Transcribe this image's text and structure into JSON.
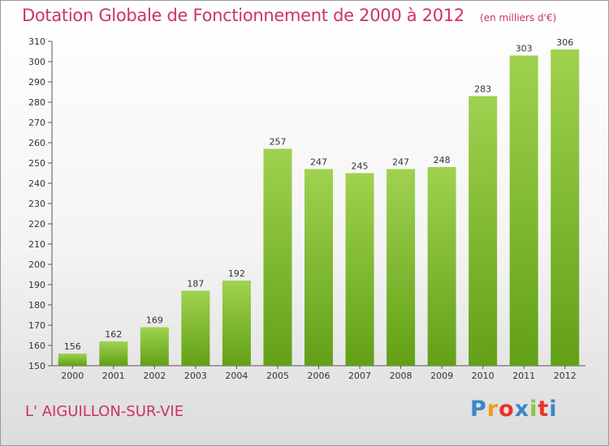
{
  "chart_data": {
    "type": "bar",
    "title": "Dotation Globale de Fonctionnement de 2000 à 2012",
    "unit": "(en milliers d'€)",
    "categories": [
      "2000",
      "2001",
      "2002",
      "2003",
      "2004",
      "2005",
      "2006",
      "2007",
      "2008",
      "2009",
      "2010",
      "2011",
      "2012"
    ],
    "values": [
      156,
      162,
      169,
      187,
      192,
      257,
      247,
      245,
      247,
      248,
      283,
      303,
      306
    ],
    "ylim": [
      150,
      310
    ],
    "yticks": [
      150,
      160,
      170,
      180,
      190,
      200,
      210,
      220,
      230,
      240,
      250,
      260,
      270,
      280,
      290,
      300,
      310
    ],
    "grid": false,
    "bar_color": "#8cc63f"
  },
  "footer": {
    "place": "L' AIGUILLON-SUR-VIE",
    "logo": "Proxiti",
    "logo_colors": [
      "#3a86c8",
      "#f29a1a",
      "#e8332a",
      "#3a86c8",
      "#8cc63f",
      "#e8332a",
      "#3a86c8"
    ]
  }
}
